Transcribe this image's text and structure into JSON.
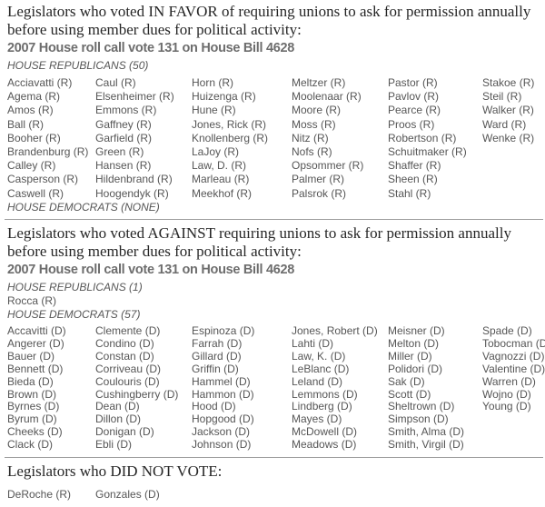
{
  "favor": {
    "heading_lines": [
      "Legislators who voted IN FAVOR of requiring unions to ask for permission annually",
      "before using member dues for political activity:"
    ],
    "subtitle": "2007 House roll call vote 131 on House Bill 4628",
    "republicans_label": "HOUSE REPUBLICANS (50)",
    "democrats_label": "HOUSE DEMOCRATS (NONE)",
    "republican_columns": [
      [
        "Acciavatti (R)",
        "Agema (R)",
        "Amos (R)",
        "Ball (R)",
        "Booher (R)",
        "Brandenburg (R)",
        "Calley (R)",
        "Casperson (R)",
        "Caswell (R)"
      ],
      [
        "Caul (R)",
        "Elsenheimer (R)",
        "Emmons (R)",
        "Gaffney (R)",
        "Garfield (R)",
        "Green (R)",
        "Hansen (R)",
        "Hildenbrand (R)",
        "Hoogendyk (R)"
      ],
      [
        "Horn (R)",
        "Huizenga (R)",
        "Hune (R)",
        "Jones, Rick (R)",
        "Knollenberg (R)",
        "LaJoy (R)",
        "Law, D. (R)",
        "Marleau (R)",
        "Meekhof (R)"
      ],
      [
        "Meltzer (R)",
        "Moolenaar (R)",
        "Moore (R)",
        "Moss (R)",
        "Nitz (R)",
        "Nofs (R)",
        "Opsommer (R)",
        "Palmer (R)",
        "Palsrok (R)"
      ],
      [
        "Pastor (R)",
        "Pavlov (R)",
        "Pearce (R)",
        "Proos (R)",
        "Robertson (R)",
        "Schuitmaker (R)",
        "Shaffer (R)",
        "Sheen (R)",
        "Stahl (R)"
      ],
      [
        "Stakoe (R)",
        "Steil (R)",
        "Walker (R)",
        "Ward (R)",
        "Wenke (R)"
      ]
    ]
  },
  "against": {
    "heading_lines": [
      "Legislators who voted AGAINST requiring unions to ask for permission annually",
      "before using member dues for political activity:"
    ],
    "subtitle": "2007 House roll call vote 131 on House Bill 4628",
    "republicans_label": "HOUSE REPUBLICANS (1)",
    "democrats_label": "HOUSE DEMOCRATS (57)",
    "republican_columns": [
      [
        "Rocca (R)"
      ]
    ],
    "democrat_columns": [
      [
        "Accavitti (D)",
        "Angerer (D)",
        "Bauer (D)",
        "Bennett (D)",
        "Bieda (D)",
        "Brown (D)",
        "Byrnes (D)",
        "Byrum (D)",
        "Cheeks (D)",
        "Clack (D)"
      ],
      [
        "Clemente (D)",
        "Condino (D)",
        "Constan (D)",
        "Corriveau (D)",
        "Coulouris (D)",
        "Cushingberry (D)",
        "Dean (D)",
        "Dillon (D)",
        "Donigan (D)",
        "Ebli (D)"
      ],
      [
        "Espinoza (D)",
        "Farrah (D)",
        "Gillard (D)",
        "Griffin (D)",
        "Hammel (D)",
        "Hammon (D)",
        "Hood (D)",
        "Hopgood (D)",
        "Jackson (D)",
        "Johnson (D)"
      ],
      [
        "Jones, Robert (D)",
        "Lahti (D)",
        "Law, K. (D)",
        "LeBlanc (D)",
        "Leland (D)",
        "Lemmons (D)",
        "Lindberg (D)",
        "Mayes (D)",
        "McDowell (D)",
        "Meadows (D)"
      ],
      [
        "Meisner (D)",
        "Melton (D)",
        "Miller (D)",
        "Polidori (D)",
        "Sak (D)",
        "Scott (D)",
        "Sheltrown (D)",
        "Simpson (D)",
        "Smith, Alma (D)",
        "Smith, Virgil (D)"
      ],
      [
        "Spade (D)",
        "Tobocman (D)",
        "Vagnozzi (D)",
        "Valentine (D)",
        "Warren (D)",
        "Wojno (D)",
        "Young (D)"
      ]
    ]
  },
  "no_vote": {
    "heading": "Legislators who DID NOT VOTE:",
    "columns": [
      [
        "DeRoche (R)"
      ],
      [
        "Gonzales (D)"
      ]
    ]
  }
}
